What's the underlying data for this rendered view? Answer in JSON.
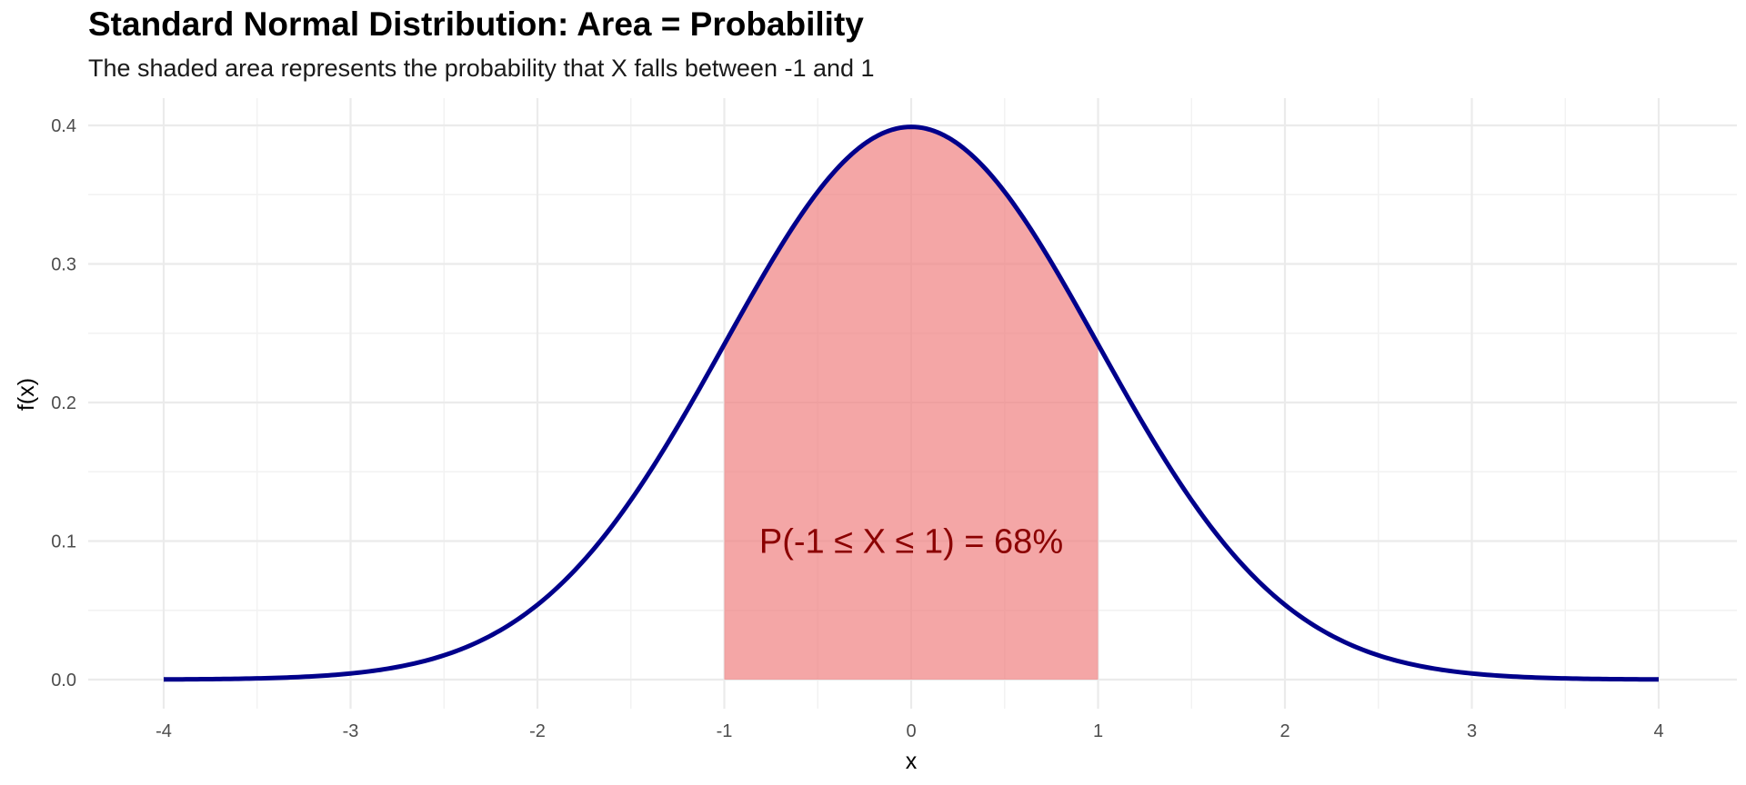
{
  "chart_data": {
    "type": "area",
    "title": "Standard Normal Distribution: Area = Probability",
    "subtitle": "The shaded area represents the probability that X falls between -1 and 1",
    "xlabel": "x",
    "ylabel": "f(x)",
    "xlim": [
      -4,
      4
    ],
    "ylim": [
      0,
      0.4
    ],
    "x_ticks": [
      -4,
      -3,
      -2,
      -1,
      0,
      1,
      2,
      3,
      4
    ],
    "y_ticks": [
      0.0,
      0.1,
      0.2,
      0.3,
      0.4
    ],
    "x_tick_labels": [
      "-4",
      "-3",
      "-2",
      "-1",
      "0",
      "1",
      "2",
      "3",
      "4"
    ],
    "y_tick_labels": [
      "0.0",
      "0.1",
      "0.2",
      "0.3",
      "0.4"
    ],
    "grid": true,
    "legend": "none",
    "series": [
      {
        "kind": "line",
        "color": "#00008B",
        "x": [
          -4.0,
          -3.5,
          -3.0,
          -2.5,
          -2.0,
          -1.5,
          -1.0,
          -0.5,
          0.0,
          0.5,
          1.0,
          1.5,
          2.0,
          2.5,
          3.0,
          3.5,
          4.0
        ],
        "y": [
          0.0001,
          0.0009,
          0.0044,
          0.0175,
          0.054,
          0.1295,
          0.242,
          0.3521,
          0.3989,
          0.3521,
          0.242,
          0.1295,
          0.054,
          0.0175,
          0.0044,
          0.0009,
          0.0001
        ]
      }
    ],
    "shaded_region": {
      "x_from": -1,
      "x_to": 1,
      "color": "#F08080",
      "opacity": 0.7
    },
    "annotation": {
      "text": "P(-1 ≤ X ≤ 1) = 68%",
      "x": 0,
      "y": 0.1,
      "color": "#8B0000"
    }
  }
}
